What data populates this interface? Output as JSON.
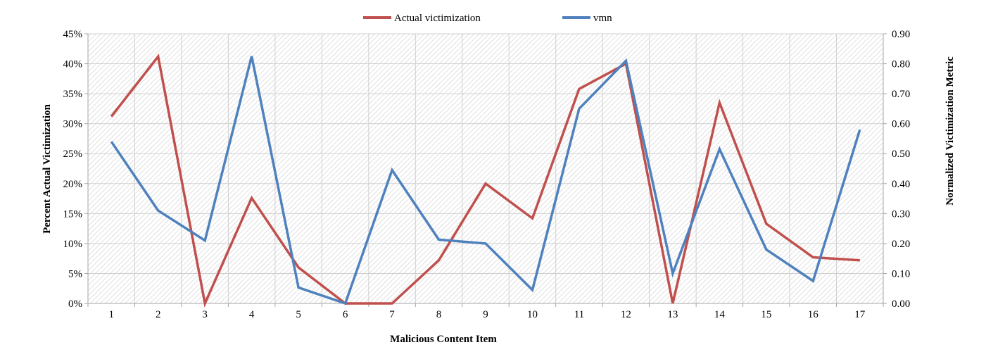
{
  "chart_data": {
    "type": "line",
    "xlabel": "Malicious Content Item",
    "ylabel": "Percent Actual Victimization",
    "y2label": "Normalized Victimization Metric",
    "categories": [
      "1",
      "2",
      "3",
      "4",
      "5",
      "6",
      "7",
      "8",
      "9",
      "10",
      "11",
      "12",
      "13",
      "14",
      "15",
      "16",
      "17"
    ],
    "ylim": [
      0,
      45
    ],
    "y_ticks": [
      "0%",
      "5%",
      "10%",
      "15%",
      "20%",
      "25%",
      "30%",
      "35%",
      "40%",
      "45%"
    ],
    "y2lim": [
      0,
      0.9
    ],
    "y2_ticks": [
      "0.00",
      "0.10",
      "0.20",
      "0.30",
      "0.40",
      "0.50",
      "0.60",
      "0.70",
      "0.80",
      "0.90"
    ],
    "legend_position": "top",
    "grid": true,
    "series": [
      {
        "name": "Actual victimization",
        "axis": "left",
        "color": "#c0504d",
        "values": [
          31.2,
          41.2,
          0,
          17.6,
          6.0,
          0,
          0,
          7.2,
          20.0,
          14.2,
          35.8,
          40.0,
          0,
          33.5,
          13.3,
          7.7,
          7.2
        ]
      },
      {
        "name": "vmn",
        "axis": "right",
        "color": "#4f81bd",
        "values": [
          0.54,
          0.31,
          0.21,
          0.825,
          0.053,
          0.0,
          0.445,
          0.213,
          0.2,
          0.045,
          0.65,
          0.81,
          0.1,
          0.515,
          0.18,
          0.075,
          0.58
        ]
      }
    ]
  }
}
